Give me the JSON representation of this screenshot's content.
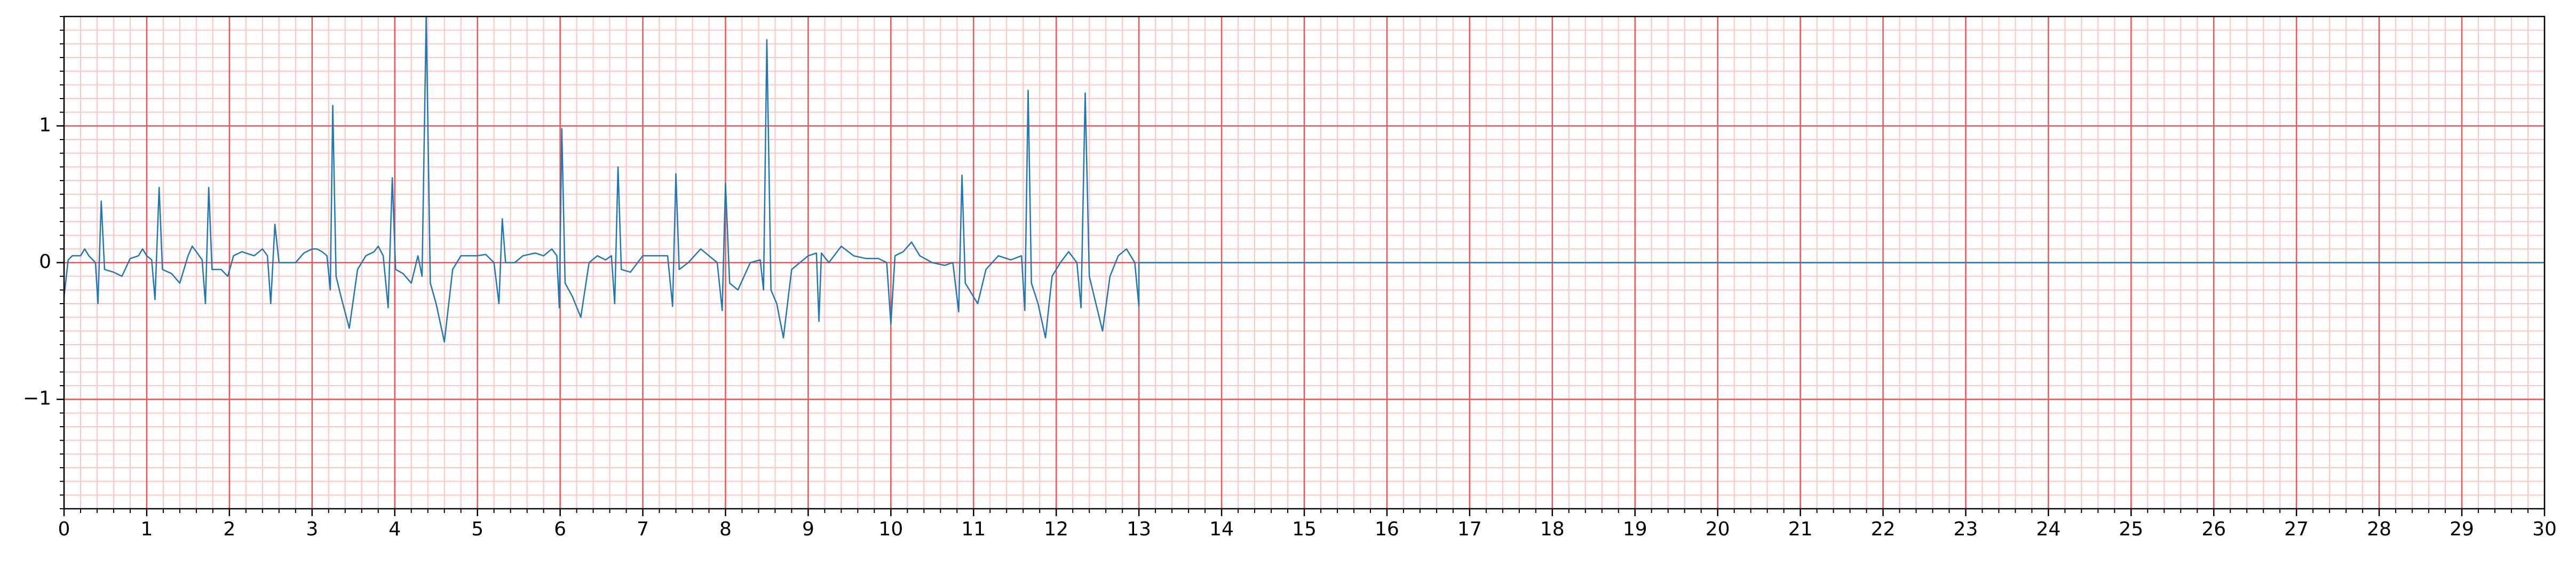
{
  "chart_data": {
    "type": "line",
    "x": [
      0,
      0.05,
      0.1,
      0.2,
      0.25,
      0.3,
      0.38,
      0.41,
      0.45,
      0.49,
      0.6,
      0.7,
      0.8,
      0.9,
      0.95,
      1.0,
      1.06,
      1.1,
      1.15,
      1.19,
      1.3,
      1.4,
      1.5,
      1.55,
      1.6,
      1.67,
      1.71,
      1.75,
      1.79,
      1.9,
      1.98,
      2.05,
      2.15,
      2.3,
      2.4,
      2.46,
      2.5,
      2.55,
      2.6,
      2.7,
      2.8,
      2.9,
      3.0,
      3.06,
      3.12,
      3.18,
      3.22,
      3.25,
      3.29,
      3.35,
      3.45,
      3.55,
      3.65,
      3.75,
      3.8,
      3.86,
      3.92,
      3.97,
      4.01,
      4.1,
      4.2,
      4.28,
      4.33,
      4.38,
      4.43,
      4.5,
      4.6,
      4.7,
      4.8,
      5.0,
      5.1,
      5.2,
      5.26,
      5.3,
      5.34,
      5.45,
      5.55,
      5.7,
      5.8,
      5.9,
      5.96,
      5.99,
      6.02,
      6.06,
      6.15,
      6.25,
      6.35,
      6.45,
      6.55,
      6.62,
      6.66,
      6.7,
      6.74,
      6.85,
      7.0,
      7.15,
      7.3,
      7.36,
      7.4,
      7.44,
      7.55,
      7.7,
      7.8,
      7.9,
      7.96,
      8.0,
      8.05,
      8.15,
      8.3,
      8.42,
      8.46,
      8.5,
      8.55,
      8.62,
      8.7,
      8.8,
      8.9,
      9.0,
      9.1,
      9.13,
      9.16,
      9.25,
      9.4,
      9.55,
      9.7,
      9.85,
      9.95,
      10.0,
      10.05,
      10.15,
      10.25,
      10.35,
      10.5,
      10.65,
      10.75,
      10.82,
      10.86,
      10.9,
      10.95,
      11.05,
      11.15,
      11.3,
      11.45,
      11.58,
      11.62,
      11.66,
      11.7,
      11.78,
      11.87,
      11.95,
      12.05,
      12.15,
      12.25,
      12.3,
      12.35,
      12.4,
      12.48,
      12.56,
      12.65,
      12.75,
      12.85,
      12.95,
      13.0,
      13.0,
      30
    ],
    "series": [
      {
        "color": "#1f77b4",
        "values": [
          -0.25,
          0.02,
          0.05,
          0.05,
          0.1,
          0.05,
          0,
          -0.3,
          0.45,
          -0.05,
          -0.07,
          -0.1,
          0.03,
          0.05,
          0.1,
          0.05,
          0.02,
          -0.27,
          0.55,
          -0.05,
          -0.08,
          -0.15,
          0.05,
          0.12,
          0.08,
          0.02,
          -0.3,
          0.55,
          -0.05,
          -0.05,
          -0.1,
          0.05,
          0.08,
          0.05,
          0.1,
          0.05,
          -0.3,
          0.28,
          0,
          0,
          0,
          0.07,
          0.1,
          0.1,
          0.08,
          0.05,
          -0.2,
          1.15,
          -0.1,
          -0.25,
          -0.48,
          -0.05,
          0.05,
          0.08,
          0.12,
          0.05,
          -0.33,
          0.62,
          -0.05,
          -0.08,
          -0.15,
          0.05,
          -0.1,
          1.8,
          -0.15,
          -0.3,
          -0.58,
          -0.05,
          0.05,
          0.05,
          0.06,
          0,
          -0.3,
          0.32,
          0,
          0,
          0.05,
          0.07,
          0.05,
          0.1,
          0.05,
          -0.33,
          0.98,
          -0.15,
          -0.25,
          -0.4,
          0,
          0.05,
          0.02,
          0.05,
          -0.3,
          0.7,
          -0.05,
          -0.07,
          0.05,
          0.05,
          0.05,
          -0.32,
          0.65,
          -0.05,
          0,
          0.1,
          0.05,
          0,
          -0.35,
          0.58,
          -0.15,
          -0.2,
          0,
          0.02,
          -0.2,
          1.63,
          -0.2,
          -0.3,
          -0.55,
          -0.05,
          0,
          0.05,
          0.07,
          -0.43,
          0.07,
          0,
          0.12,
          0.05,
          0.03,
          0.03,
          0,
          -0.45,
          0.05,
          0.08,
          0.15,
          0.05,
          0,
          -0.02,
          0,
          -0.36,
          0.64,
          -0.15,
          -0.2,
          -0.3,
          -0.05,
          0.05,
          0.02,
          0.05,
          -0.35,
          1.26,
          -0.15,
          -0.3,
          -0.55,
          -0.1,
          0,
          0.08,
          0,
          -0.33,
          1.24,
          -0.1,
          -0.3,
          -0.5,
          -0.1,
          0.05,
          0.1,
          0,
          -0.32,
          0,
          0
        ]
      }
    ],
    "xlim": [
      0,
      30
    ],
    "ylim": [
      -1.8,
      1.8
    ],
    "xticks": [
      0,
      1,
      2,
      3,
      4,
      5,
      6,
      7,
      8,
      9,
      10,
      11,
      12,
      13,
      14,
      15,
      16,
      17,
      18,
      19,
      20,
      21,
      22,
      23,
      24,
      25,
      26,
      27,
      28,
      29,
      30
    ],
    "yticks": [
      {
        "value": -1,
        "label": "−1"
      },
      0,
      1
    ],
    "grid": true,
    "grid_color": "#ee5555",
    "minor_grid_color": "#ffc4c4"
  }
}
